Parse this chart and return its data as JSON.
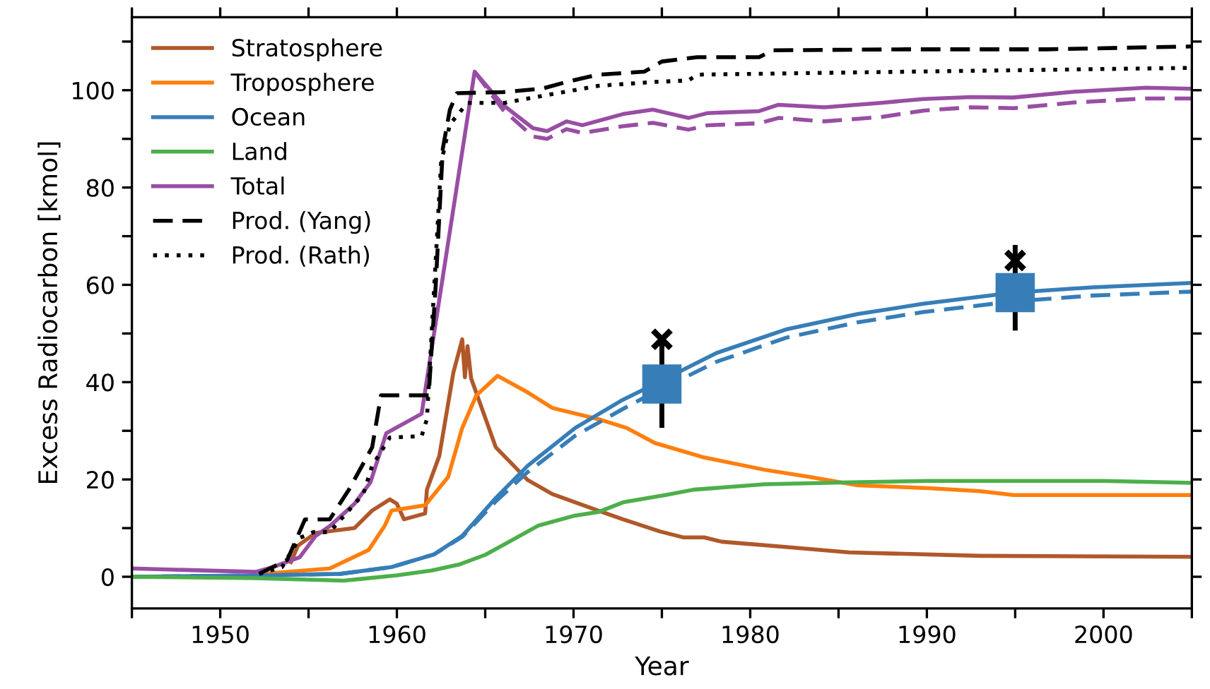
{
  "chart_data": {
    "type": "line",
    "xlabel": "Year",
    "ylabel": "Excess Radiocarbon [kmol]",
    "xlim": [
      1945,
      2005
    ],
    "ylim": [
      -6.5,
      115
    ],
    "xticks": [
      {
        "value": 1945,
        "label": null
      },
      1950,
      {
        "value": 1955,
        "label": null
      },
      1960,
      {
        "value": 1965,
        "label": null
      },
      1970,
      {
        "value": 1975,
        "label": null
      },
      1980,
      {
        "value": 1985,
        "label": null
      },
      1990,
      {
        "value": 1995,
        "label": null
      },
      2000,
      {
        "value": 2005,
        "label": null
      }
    ],
    "yticks": [
      0,
      {
        "value": 10,
        "label": null
      },
      20,
      {
        "value": 30,
        "label": null
      },
      40,
      {
        "value": 50,
        "label": null
      },
      60,
      {
        "value": 70,
        "label": null
      },
      80,
      {
        "value": 90,
        "label": null
      },
      100,
      {
        "value": 110,
        "label": null
      }
    ],
    "grid": false,
    "legend": "top left",
    "series": [
      {
        "name": "Stratosphere",
        "color": "#b0582a",
        "line_style": "solid",
        "x": [
          1954,
          1954.4,
          1955.4,
          1957.6,
          1958.6,
          1959.6,
          1960,
          1960.4,
          1961.6,
          1961.7,
          1962.4,
          1963.2,
          1963.7,
          1963.85,
          1964,
          1964.2,
          1965.6,
          1967.4,
          1968.8,
          1971.4,
          1972.8,
          1974.9,
          1976.2,
          1977.4,
          1978.4,
          1982.1,
          1985.6,
          1993,
          2005
        ],
        "values": [
          3,
          6.4,
          9,
          10,
          13.6,
          15.9,
          15,
          11.8,
          13,
          17.9,
          24.8,
          42,
          48.8,
          41,
          47.4,
          40.8,
          26.6,
          19.9,
          17,
          13.6,
          11.8,
          9.3,
          8.1,
          8.1,
          7.2,
          6.1,
          5.0,
          4.3,
          4.1
        ]
      },
      {
        "name": "Troposphere",
        "color": "#ff7f0e",
        "line_style": "solid",
        "x": [
          1952.5,
          1956.2,
          1958.4,
          1959.3,
          1959.7,
          1961.6,
          1962.9,
          1963.7,
          1964.5,
          1965.7,
          1967.4,
          1968.8,
          1971.4,
          1973,
          1974.6,
          1977.3,
          1980.8,
          1983.4,
          1986.1,
          1990.1,
          1993,
          1994.9,
          2005
        ],
        "values": [
          0.6,
          1.7,
          5.5,
          10.4,
          13.6,
          14.7,
          20.5,
          30.6,
          37.3,
          41.3,
          37.9,
          34.7,
          32.4,
          30.6,
          27.5,
          24.6,
          22,
          20.5,
          18.8,
          18.2,
          17.6,
          16.8,
          16.8
        ]
      },
      {
        "name": "Ocean",
        "color": "#377eb8",
        "line_style": "solid",
        "x": [
          1945,
          1952.7,
          1956.8,
          1959.7,
          1962.1,
          1963.7,
          1965.6,
          1967.4,
          1970.1,
          1972.8,
          1974.1,
          1978.1,
          1982.1,
          1986.1,
          1989.8,
          1994.9,
          1999.4,
          2005
        ],
        "values": [
          0,
          0.3,
          0.6,
          2,
          4.6,
          8.4,
          16.2,
          22.8,
          30.6,
          36.4,
          38.7,
          46,
          50.9,
          54,
          56.1,
          58.4,
          59.5,
          60.4
        ]
      },
      {
        "color": "#377eb8",
        "line_style": "dashed",
        "x": [
          1945,
          1952.7,
          1956.8,
          1959.7,
          1962.1,
          1963.7,
          1965.6,
          1967.4,
          1970.1,
          1972.8,
          1974.1,
          1978.1,
          1982.1,
          1986.1,
          1989.8,
          1994.9,
          1999.4,
          2005
        ],
        "values": [
          0,
          0.3,
          0.6,
          2,
          4.6,
          8.2,
          15.5,
          21.5,
          29,
          34.5,
          37,
          44.2,
          49.2,
          52.3,
          54.4,
          56.6,
          57.8,
          58.6
        ]
      },
      {
        "name": "Land",
        "color": "#4daf4a",
        "line_style": "solid",
        "x": [
          1945,
          1952,
          1957,
          1960,
          1962,
          1963.5,
          1965,
          1966.5,
          1968,
          1970,
          1971.4,
          1972.8,
          1975.2,
          1976.8,
          1980.8,
          1985.6,
          1990.1,
          2000,
          2005
        ],
        "values": [
          0,
          -0.3,
          -0.8,
          0.3,
          1.3,
          2.5,
          4.5,
          7.5,
          10.5,
          12.5,
          13.3,
          15.3,
          16.8,
          17.9,
          19,
          19.4,
          19.7,
          19.7,
          19.3
        ]
      },
      {
        "name": "Total",
        "color": "#984ea3",
        "line_style": "solid",
        "x": [
          1945,
          1952,
          1953,
          1954.5,
          1955.4,
          1956.2,
          1957.6,
          1958.5,
          1959.4,
          1961.4,
          1964.4,
          1966,
          1967.7,
          1968.5,
          1969.6,
          1970.5,
          1972.8,
          1974.5,
          1976.5,
          1977.6,
          1980.5,
          1981.6,
          1984.2,
          1987.4,
          1989.8,
          1992.5,
          1994.9,
          1998.4,
          2002.4,
          2005
        ],
        "values": [
          1.7,
          1.0,
          2,
          4,
          8.4,
          10.4,
          15,
          19.4,
          29.5,
          33.5,
          103.8,
          97,
          92.2,
          91.6,
          93.6,
          92.8,
          95.1,
          96,
          94.3,
          95.3,
          95.7,
          97,
          96.5,
          97.4,
          98.2,
          98.6,
          98.5,
          99.7,
          100.5,
          100.3
        ]
      },
      {
        "color": "#984ea3",
        "line_style": "dashed",
        "x": [
          1964.4,
          1966,
          1967.7,
          1968.5,
          1969.6,
          1970.5,
          1972.8,
          1974.5,
          1976.5,
          1977.6,
          1980.5,
          1981.6,
          1984.2,
          1987.4,
          1989.8,
          1992.5,
          1994.9,
          1998.4,
          2002.4,
          2005
        ],
        "values": [
          103.8,
          96,
          90.5,
          90,
          92,
          91.2,
          92.6,
          93.3,
          91.9,
          92.8,
          93.2,
          94.3,
          93.6,
          94.5,
          95.8,
          96.5,
          96.3,
          97.5,
          98.3,
          98.3
        ]
      },
      {
        "name": "Prod. (Yang)",
        "color": "#000000",
        "line_style": "dashed",
        "x": [
          1952.2,
          1953.8,
          1954.8,
          1956.2,
          1957.3,
          1958.6,
          1959.1,
          1961.8,
          1962.2,
          1962.6,
          1963,
          1963.4,
          1966,
          1968.2,
          1969.6,
          1971.4,
          1974,
          1975,
          1977,
          1980.5,
          1981.3,
          1988.8,
          1996.8,
          2005
        ],
        "values": [
          0.6,
          3.5,
          11.8,
          11.8,
          18,
          26.6,
          37.3,
          37.3,
          60,
          88,
          96,
          99.4,
          99.6,
          100.3,
          101.7,
          103.2,
          103.8,
          105.9,
          106.8,
          106.8,
          108.2,
          108.4,
          108.4,
          109
        ]
      },
      {
        "name": "Prod. (Rath)",
        "color": "#000000",
        "line_style": "dotted",
        "x": [
          1952.2,
          1953.5,
          1954.5,
          1955.3,
          1956.2,
          1958.1,
          1958.6,
          1959.6,
          1961.4,
          1961.7,
          1962.5,
          1963,
          1964,
          1966.1,
          1968.2,
          1971.4,
          1974.6,
          1976.5,
          1977,
          1988.8,
          2005
        ],
        "values": [
          0.6,
          2,
          8,
          9.2,
          9.2,
          17,
          22.8,
          28.6,
          28.9,
          32.4,
          85,
          93,
          97.4,
          97.4,
          98.8,
          100.9,
          101.7,
          102,
          103.2,
          103.8,
          104.6
        ]
      },
      {
        "type": "scatter",
        "color": "#377eb8",
        "marker": "square",
        "x": [
          1975,
          1995
        ],
        "values": [
          39.6,
          58.4
        ],
        "errors": [
          [
            30.6,
            48.8
          ],
          [
            50.6,
            68.2
          ]
        ]
      },
      {
        "type": "scatter",
        "color": "#000000",
        "marker": "cross",
        "x": [
          1975,
          1995
        ],
        "values": [
          48.8,
          65
        ]
      }
    ]
  }
}
